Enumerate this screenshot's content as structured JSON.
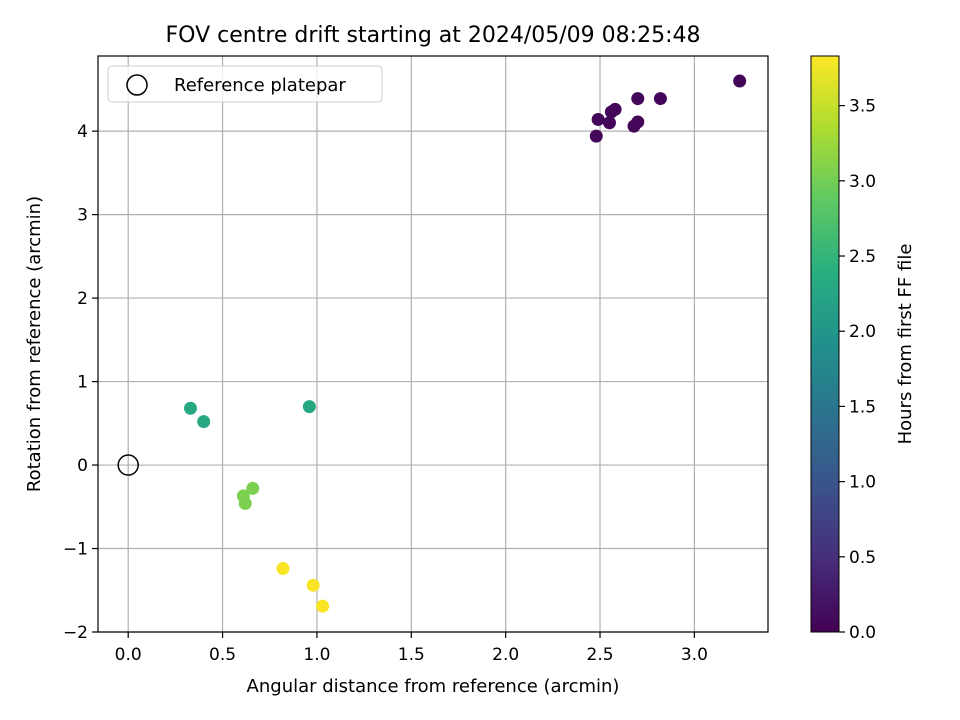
{
  "chart_data": {
    "type": "scatter",
    "title": "FOV centre drift starting at 2024/05/09 08:25:48",
    "xlabel": "Angular distance from reference (arcmin)",
    "ylabel": "Rotation from reference (arcmin)",
    "xlim": [
      -0.16,
      3.39
    ],
    "ylim": [
      -2.0,
      4.9
    ],
    "xticks": [
      "0.0",
      "0.5",
      "1.0",
      "1.5",
      "2.0",
      "2.5",
      "3.0"
    ],
    "xtick_values": [
      0.0,
      0.5,
      1.0,
      1.5,
      2.0,
      2.5,
      3.0
    ],
    "yticks": [
      "−2",
      "−1",
      "0",
      "1",
      "2",
      "3",
      "4"
    ],
    "ytick_values": [
      -2,
      -1,
      0,
      1,
      2,
      3,
      4
    ],
    "grid": true,
    "legend": {
      "position": "top-left",
      "label": "Reference platepar"
    },
    "reference_point": {
      "x": 0.0,
      "y": 0.0
    },
    "colorbar": {
      "label": "Hours from first FF file",
      "range": [
        0.0,
        3.83
      ],
      "ticks": [
        "0.0",
        "0.5",
        "1.0",
        "1.5",
        "2.0",
        "2.5",
        "3.0",
        "3.5"
      ],
      "tick_values": [
        0.0,
        0.5,
        1.0,
        1.5,
        2.0,
        2.5,
        3.0,
        3.5
      ],
      "colormap": "viridis"
    },
    "points": [
      {
        "x": 3.24,
        "y": 4.6,
        "hours": 0.05
      },
      {
        "x": 2.49,
        "y": 4.14,
        "hours": 0.05
      },
      {
        "x": 2.55,
        "y": 4.1,
        "hours": 0.05
      },
      {
        "x": 2.56,
        "y": 4.23,
        "hours": 0.05
      },
      {
        "x": 2.58,
        "y": 4.26,
        "hours": 0.05
      },
      {
        "x": 2.48,
        "y": 3.94,
        "hours": 0.05
      },
      {
        "x": 2.68,
        "y": 4.06,
        "hours": 0.05
      },
      {
        "x": 2.7,
        "y": 4.11,
        "hours": 0.05
      },
      {
        "x": 2.7,
        "y": 4.39,
        "hours": 0.05
      },
      {
        "x": 2.82,
        "y": 4.39,
        "hours": 0.05
      },
      {
        "x": 0.33,
        "y": 0.68,
        "hours": 2.3
      },
      {
        "x": 0.4,
        "y": 0.52,
        "hours": 2.3
      },
      {
        "x": 0.96,
        "y": 0.7,
        "hours": 2.3
      },
      {
        "x": 0.61,
        "y": -0.37,
        "hours": 3.05
      },
      {
        "x": 0.62,
        "y": -0.46,
        "hours": 3.05
      },
      {
        "x": 0.66,
        "y": -0.28,
        "hours": 3.05
      },
      {
        "x": 0.82,
        "y": -1.24,
        "hours": 3.8
      },
      {
        "x": 0.98,
        "y": -1.44,
        "hours": 3.8
      },
      {
        "x": 1.03,
        "y": -1.69,
        "hours": 3.8
      }
    ]
  }
}
